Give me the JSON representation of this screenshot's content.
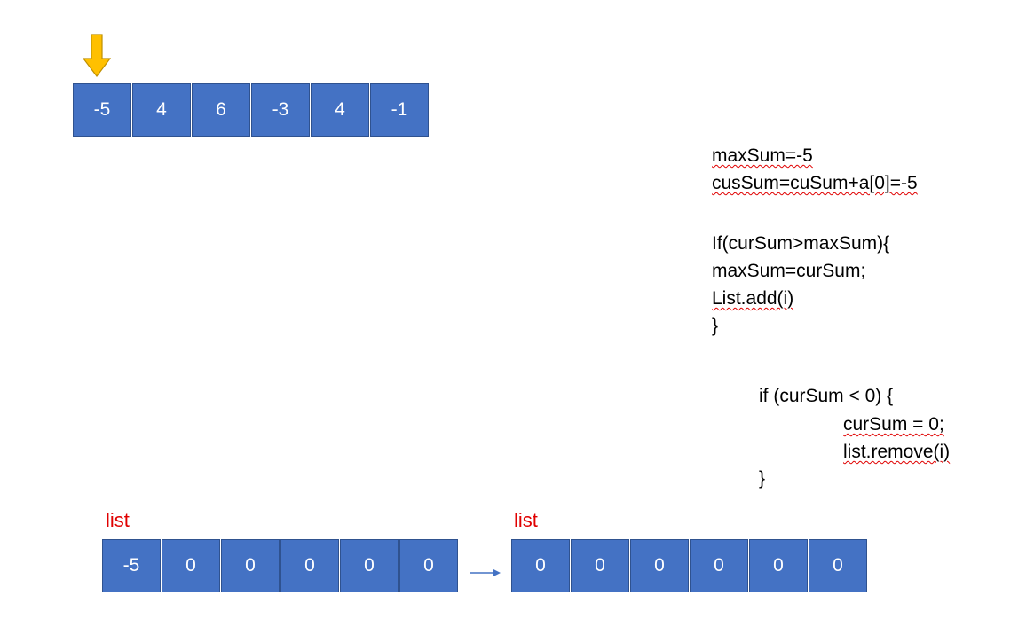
{
  "top_array": [
    "-5",
    "4",
    "6",
    "-3",
    "4",
    "-1"
  ],
  "code_block_1": {
    "line1": "maxSum=-5",
    "line2": "cusSum=cuSum+a[0]=-5"
  },
  "code_block_2": {
    "line1": "If(curSum>maxSum){",
    "line2": "maxSum=curSum;",
    "line3": "List.add(i)",
    "line4": "}"
  },
  "code_block_3": {
    "line1": "if (curSum < 0) {",
    "line2": "curSum = 0;",
    "line3": "list.remove(i)",
    "line4": "}"
  },
  "list_left": {
    "label": "list",
    "values": [
      "-5",
      "0",
      "0",
      "0",
      "0",
      "0"
    ]
  },
  "list_right": {
    "label": "list",
    "values": [
      "0",
      "0",
      "0",
      "0",
      "0",
      "0"
    ]
  },
  "colors": {
    "cell_fill": "#4472c4",
    "cell_border": "#2f528f",
    "pointer_arrow": "#ffc000",
    "list_label": "#e00000",
    "transfer_arrow": "#4472c4"
  }
}
